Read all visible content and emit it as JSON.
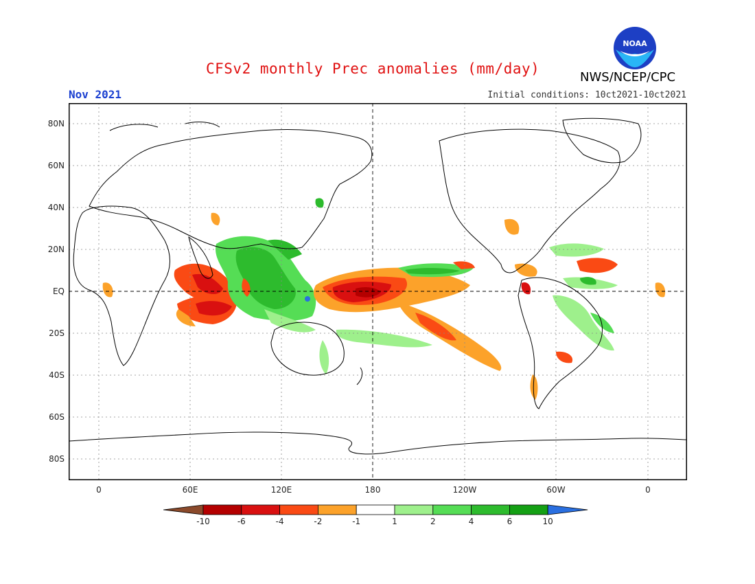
{
  "header": {
    "title": "CFSv2 monthly Prec anomalies (mm/day)",
    "month": "Nov 2021",
    "initial_conditions": "Initial conditions: 10ct2021-10ct2021",
    "agency": "NWS/NCEP/CPC",
    "logo_text": "NOAA"
  },
  "axes": {
    "lat_labels": [
      "80N",
      "60N",
      "40N",
      "20N",
      "EQ",
      "20S",
      "40S",
      "60S",
      "80S"
    ],
    "lon_labels": [
      "0",
      "60E",
      "120E",
      "180",
      "120W",
      "60W",
      "0"
    ]
  },
  "colorbar": {
    "ticks": [
      "-10",
      "-6",
      "-4",
      "-2",
      "-1",
      "1",
      "2",
      "4",
      "6",
      "10"
    ],
    "colors": [
      "#8b4a2b",
      "#b40000",
      "#d91010",
      "#fa4a14",
      "#fca22a",
      "#ffffff",
      "#9ef08c",
      "#55dd55",
      "#2dbb2d",
      "#14a014",
      "#2a6fe0"
    ]
  }
}
